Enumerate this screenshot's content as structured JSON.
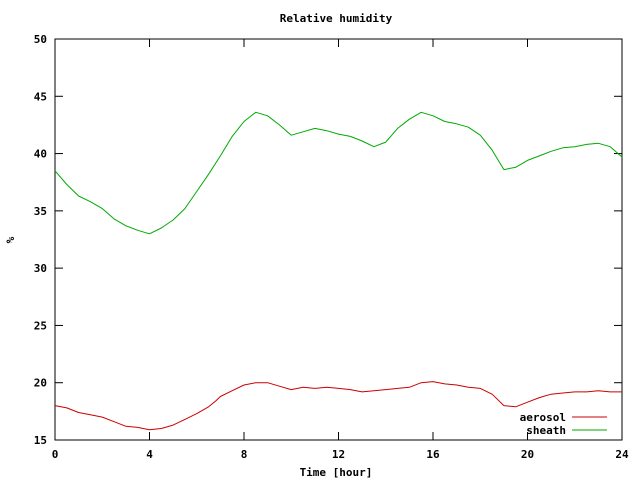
{
  "chart_data": {
    "type": "line",
    "title": "Relative humidity",
    "xlabel": "Time [hour]",
    "ylabel": "%",
    "xlim": [
      0,
      24
    ],
    "ylim": [
      15,
      50
    ],
    "xticks": [
      0,
      4,
      8,
      12,
      16,
      20,
      24
    ],
    "yticks": [
      15,
      20,
      25,
      30,
      35,
      40,
      45,
      50
    ],
    "grid": false,
    "legend_position": "bottom-right",
    "series": [
      {
        "name": "aerosol",
        "color": "#cc0000",
        "x": [
          0,
          0.5,
          1,
          1.5,
          2,
          2.5,
          3,
          3.5,
          4,
          4.5,
          5,
          5.5,
          6,
          6.5,
          6.8,
          7,
          7.5,
          8,
          8.5,
          9,
          9.5,
          10,
          10.5,
          11,
          11.5,
          12,
          12.5,
          13,
          13.5,
          14,
          14.5,
          15,
          15.5,
          16,
          16.5,
          17,
          17.5,
          18,
          18.5,
          19,
          19.5,
          20,
          20.5,
          21,
          21.5,
          22,
          22.5,
          23,
          23.5,
          24
        ],
        "y": [
          18.0,
          17.8,
          17.4,
          17.2,
          17.0,
          16.6,
          16.2,
          16.1,
          15.9,
          16.0,
          16.3,
          16.8,
          17.3,
          17.9,
          18.4,
          18.8,
          19.3,
          19.8,
          20.0,
          20.0,
          19.7,
          19.4,
          19.6,
          19.5,
          19.6,
          19.5,
          19.4,
          19.2,
          19.3,
          19.4,
          19.5,
          19.6,
          20.0,
          20.1,
          19.9,
          19.8,
          19.6,
          19.5,
          19.0,
          18.0,
          17.9,
          18.3,
          18.7,
          19.0,
          19.1,
          19.2,
          19.2,
          19.3,
          19.2,
          19.2
        ]
      },
      {
        "name": "sheath",
        "color": "#00aa00",
        "x": [
          0,
          0.5,
          1,
          1.5,
          2,
          2.5,
          3,
          3.5,
          4,
          4.5,
          5,
          5.5,
          6,
          6.5,
          7,
          7.5,
          8,
          8.5,
          9,
          9.5,
          10,
          10.5,
          11,
          11.5,
          12,
          12.5,
          13,
          13.5,
          14,
          14.5,
          15,
          15.5,
          16,
          16.5,
          17,
          17.5,
          18,
          18.5,
          19,
          19.5,
          20,
          20.5,
          21,
          21.5,
          22,
          22.5,
          23,
          23.5,
          24
        ],
        "y": [
          38.5,
          37.3,
          36.3,
          35.8,
          35.2,
          34.3,
          33.7,
          33.3,
          33.0,
          33.5,
          34.2,
          35.2,
          36.7,
          38.2,
          39.8,
          41.5,
          42.8,
          43.6,
          43.3,
          42.5,
          41.6,
          41.9,
          42.2,
          42.0,
          41.7,
          41.5,
          41.1,
          40.6,
          41.0,
          42.2,
          43.0,
          43.6,
          43.3,
          42.8,
          42.6,
          42.3,
          41.6,
          40.3,
          38.6,
          38.8,
          39.4,
          39.8,
          40.2,
          40.5,
          40.6,
          40.8,
          40.9,
          40.6,
          39.7
        ]
      }
    ]
  }
}
